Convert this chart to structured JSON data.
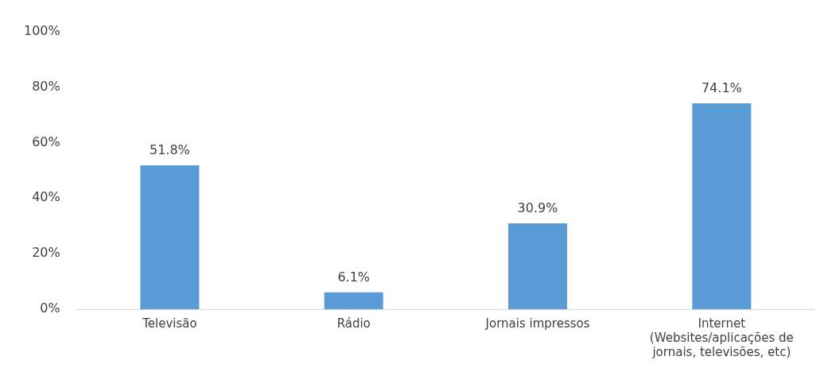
{
  "chart_data": {
    "type": "bar",
    "categories": [
      "Televisão",
      "Rádio",
      "Jornais impressos",
      "Internet (Websites/aplicações de jornais, televisões, etc)"
    ],
    "values": [
      51.8,
      6.1,
      30.9,
      74.1
    ],
    "value_labels": [
      "51.8%",
      "6.1%",
      "30.9%",
      "74.1%"
    ],
    "color": "#5b9bd5",
    "ylim": [
      0,
      100
    ],
    "yticks": [
      {
        "value": 0,
        "label": "0%"
      },
      {
        "value": 20,
        "label": "20%"
      },
      {
        "value": 40,
        "label": "40%"
      },
      {
        "value": 60,
        "label": "60%"
      },
      {
        "value": 80,
        "label": "80%"
      },
      {
        "value": 100,
        "label": "100%"
      }
    ],
    "grid": false,
    "legend": false
  }
}
